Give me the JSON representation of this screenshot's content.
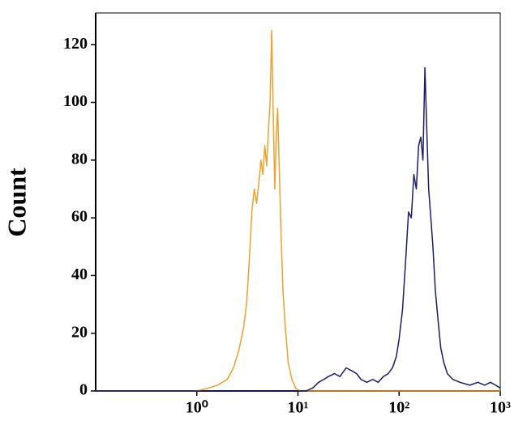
{
  "chart_data": {
    "type": "line",
    "ylabel": "Count",
    "xscale": "log",
    "xlim": [
      0.1,
      1000
    ],
    "xticks": [
      {
        "value": 1,
        "label": "10⁰"
      },
      {
        "value": 10,
        "label": "10¹"
      },
      {
        "value": 100,
        "label": "10²"
      },
      {
        "value": 1000,
        "label": "10³"
      }
    ],
    "ylim": [
      0,
      131
    ],
    "yticks": [
      0,
      20,
      40,
      60,
      80,
      100,
      120
    ],
    "series": [
      {
        "color": "#f0a02c",
        "x": [
          0.1,
          0.8,
          1.0,
          1.3,
          1.6,
          2.0,
          2.3,
          2.6,
          2.9,
          3.1,
          3.3,
          3.5,
          3.7,
          3.9,
          4.1,
          4.3,
          4.5,
          4.7,
          4.9,
          5.1,
          5.3,
          5.5,
          5.7,
          5.9,
          6.1,
          6.3,
          6.5,
          6.8,
          7.1,
          7.5,
          8.0,
          8.7,
          9.5,
          10.5,
          1000
        ],
        "values": [
          0,
          0,
          0,
          1,
          2,
          4,
          8,
          14,
          22,
          30,
          45,
          62,
          70,
          65,
          72,
          80,
          75,
          85,
          78,
          90,
          100,
          125,
          95,
          70,
          88,
          98,
          80,
          55,
          35,
          22,
          10,
          4,
          1,
          0,
          0
        ]
      },
      {
        "color": "#1c1c6b",
        "x": [
          0.1,
          12,
          14,
          16,
          18,
          20,
          23,
          26,
          30,
          34,
          38,
          42,
          48,
          55,
          62,
          70,
          78,
          86,
          94,
          100,
          108,
          116,
          124,
          132,
          140,
          148,
          156,
          164,
          172,
          180,
          188,
          196,
          206,
          216,
          228,
          242,
          258,
          276,
          300,
          340,
          400,
          500,
          600,
          700,
          800,
          900,
          1000
        ],
        "values": [
          0,
          0,
          1,
          3,
          4,
          5,
          6,
          5,
          8,
          7,
          6,
          4,
          3,
          4,
          3,
          5,
          6,
          8,
          12,
          18,
          28,
          45,
          62,
          60,
          75,
          70,
          85,
          88,
          80,
          112,
          90,
          70,
          60,
          50,
          35,
          25,
          15,
          10,
          6,
          4,
          3,
          2,
          3,
          2,
          3,
          2,
          1
        ]
      }
    ]
  }
}
